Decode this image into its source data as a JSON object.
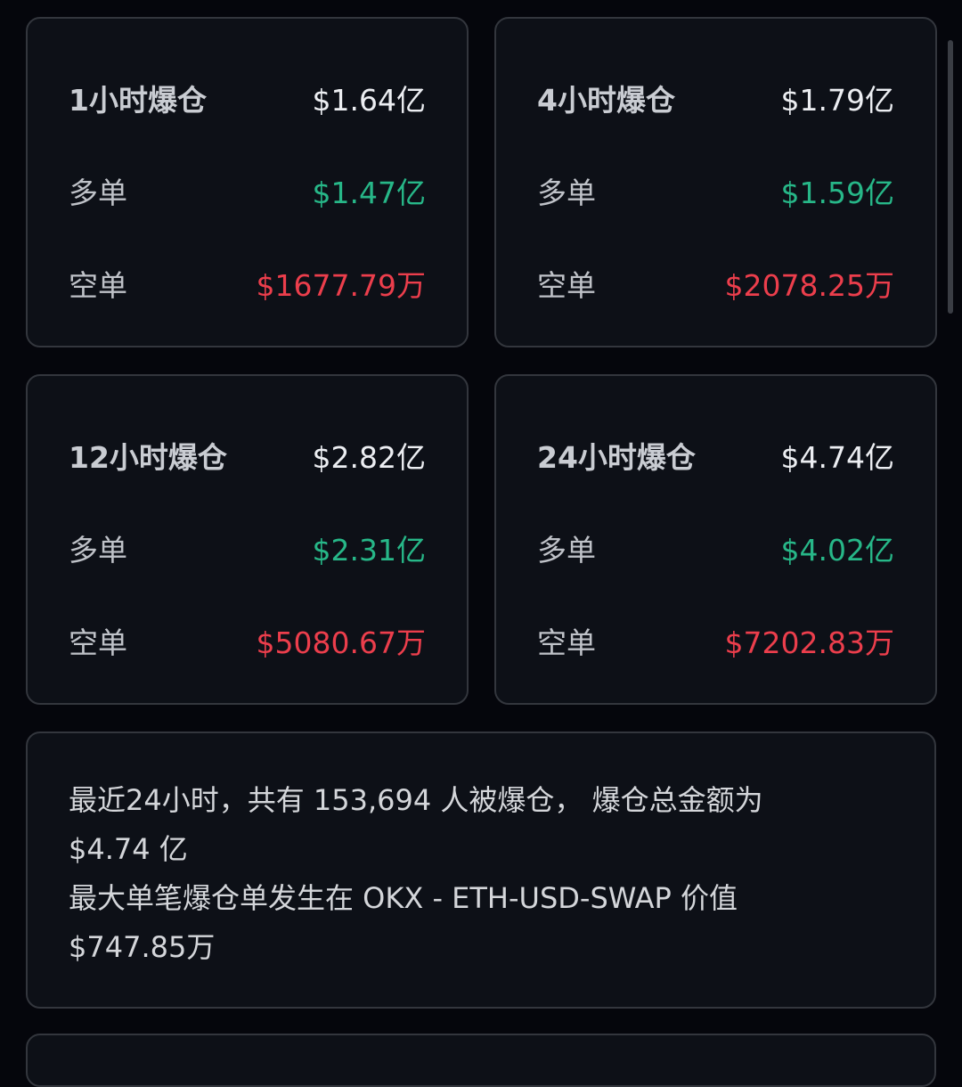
{
  "cards": [
    {
      "title": "1小时爆仓",
      "total": "$1.64亿",
      "long_label": "多单",
      "long": "$1.47亿",
      "short_label": "空单",
      "short": "$1677.79万"
    },
    {
      "title": "4小时爆仓",
      "total": "$1.79亿",
      "long_label": "多单",
      "long": "$1.59亿",
      "short_label": "空单",
      "short": "$2078.25万"
    },
    {
      "title": "12小时爆仓",
      "total": "$2.82亿",
      "long_label": "多单",
      "long": "$2.31亿",
      "short_label": "空单",
      "short": "$5080.67万"
    },
    {
      "title": "24小时爆仓",
      "total": "$4.74亿",
      "long_label": "多单",
      "long": "$4.02亿",
      "short_label": "空单",
      "short": "$7202.83万"
    }
  ],
  "summary": {
    "lines": [
      "最近24小时，共有 153,694 人被爆仓， 爆仓总金额为",
      "$4.74 亿",
      "最大单笔爆仓单发生在 OKX - ETH-USD-SWAP 价值",
      "$747.85万"
    ]
  },
  "colors": {
    "background": "#05060c",
    "card": "#0d1017",
    "long": "#27b788",
    "short": "#ec3e4c"
  }
}
